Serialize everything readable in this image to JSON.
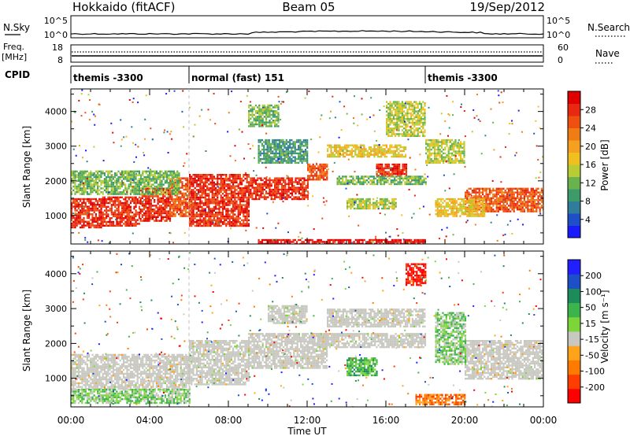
{
  "header": {
    "station": "Hokkaido (fitACF)",
    "beam": "Beam 05",
    "date": "19/Sep/2012"
  },
  "strip": {
    "nsky_label": "N.Sky",
    "nsearch_label": "N.Search",
    "freq_label_1": "Freq.",
    "freq_label_2": "[MHz]",
    "nave_label": "Nave",
    "cpid_label": "CPID",
    "nsky_ticks": [
      "10^5",
      "10^0"
    ],
    "nsearch_ticks": [
      "10^5",
      "10^0"
    ],
    "freq_ticks": [
      "18",
      "8"
    ],
    "nave_ticks": [
      "60",
      "0"
    ]
  },
  "cpid_segments": [
    {
      "label": "themis -3300",
      "start_hour": 0
    },
    {
      "label": "normal (fast) 151",
      "start_hour": 6
    },
    {
      "label": "themis -3300",
      "start_hour": 18
    }
  ],
  "colors": {
    "power_scale": [
      "#1a1aff",
      "#1f4fc8",
      "#2f7d9a",
      "#3d9b6a",
      "#68b34d",
      "#b9cc33",
      "#f0c020",
      "#f5a020",
      "#f07c14",
      "#ee5010",
      "#e82810",
      "#e00000"
    ],
    "velocity_scale": [
      "#ff0000",
      "#ff3d00",
      "#ff7a00",
      "#ffa31a",
      "#c8c8c0",
      "#7cd63a",
      "#3cb44b",
      "#1e8c5a",
      "#1c4fc8",
      "#2020ff"
    ],
    "ground_scatter": "#c8c8c0"
  },
  "chart_data": [
    {
      "type": "heatmap",
      "name": "power",
      "xlabel": "",
      "ylabel": "Slant Range [km]",
      "colorbar_label": "Power [dB]",
      "colorbar_ticks": [
        4,
        8,
        12,
        16,
        20,
        24,
        28
      ],
      "x_ticks": [
        "00:00",
        "04:00",
        "08:00",
        "12:00",
        "16:00",
        "20:00",
        "00:00"
      ],
      "x_range_hours": [
        0,
        24
      ],
      "y_ticks": [
        1000,
        2000,
        3000,
        4000
      ],
      "y_range_km": [
        180,
        4650
      ],
      "bands": [
        {
          "t0": 0.0,
          "t1": 1.5,
          "r0": 650,
          "r1": 1500,
          "level": 10
        },
        {
          "t0": 1.5,
          "t1": 3.5,
          "r0": 700,
          "r1": 1550,
          "level": 10
        },
        {
          "t0": 3.5,
          "t1": 5.0,
          "r0": 850,
          "r1": 1800,
          "level": 10
        },
        {
          "t0": 5.0,
          "t1": 6.0,
          "r0": 1000,
          "r1": 2100,
          "level": 9
        },
        {
          "t0": 6.0,
          "t1": 9.0,
          "r0": 700,
          "r1": 2200,
          "level": 10
        },
        {
          "t0": 9.0,
          "t1": 12.0,
          "r0": 1500,
          "r1": 2100,
          "level": 10
        },
        {
          "t0": 12.0,
          "t1": 13.0,
          "r0": 2050,
          "r1": 2500,
          "level": 9
        },
        {
          "t0": 13.0,
          "t1": 17.0,
          "r0": 2700,
          "r1": 3050,
          "level": 6
        },
        {
          "t0": 15.5,
          "t1": 17.0,
          "r0": 2150,
          "r1": 2500,
          "level": 10
        },
        {
          "t0": 13.5,
          "t1": 18.0,
          "r0": 1900,
          "r1": 2150,
          "level": 4
        },
        {
          "t0": 18.0,
          "t1": 20.0,
          "r0": 2500,
          "r1": 3200,
          "level": 5
        },
        {
          "t0": 20.0,
          "t1": 24.0,
          "r0": 1100,
          "r1": 1800,
          "level": 9
        },
        {
          "t0": 0.0,
          "t1": 5.5,
          "r0": 1600,
          "r1": 2300,
          "level": 4
        },
        {
          "t0": 18.5,
          "t1": 21.0,
          "r0": 1000,
          "r1": 1500,
          "level": 6
        },
        {
          "t0": 14.0,
          "t1": 16.5,
          "r0": 1200,
          "r1": 1500,
          "level": 5
        },
        {
          "t0": 9.5,
          "t1": 12.0,
          "r0": 2500,
          "r1": 3200,
          "level": 3
        },
        {
          "t0": 16.0,
          "t1": 18.0,
          "r0": 3300,
          "r1": 4300,
          "level": 5
        },
        {
          "t0": 9.0,
          "t1": 10.5,
          "r0": 3600,
          "r1": 4200,
          "level": 4
        },
        {
          "t0": 9.5,
          "t1": 18.0,
          "r0": 200,
          "r1": 320,
          "level": 11
        }
      ]
    },
    {
      "type": "heatmap",
      "name": "velocity",
      "xlabel": "Time UT",
      "ylabel": "Slant Range [km]",
      "colorbar_label": "Velocity [m s⁻¹]",
      "colorbar_ticks": [
        -200,
        -100,
        -50,
        -15,
        15,
        50,
        100,
        200
      ],
      "x_ticks": [
        "00:00",
        "04:00",
        "08:00",
        "12:00",
        "16:00",
        "20:00",
        "00:00"
      ],
      "x_range_hours": [
        0,
        24
      ],
      "y_ticks": [
        1000,
        2000,
        3000,
        4000
      ],
      "y_range_km": [
        180,
        4650
      ],
      "bands": [
        {
          "t0": 0.0,
          "t1": 6.0,
          "r0": 700,
          "r1": 1700,
          "level": 4
        },
        {
          "t0": 6.0,
          "t1": 9.0,
          "r0": 800,
          "r1": 2100,
          "level": 4
        },
        {
          "t0": 9.0,
          "t1": 13.0,
          "r0": 1300,
          "r1": 2300,
          "level": 4
        },
        {
          "t0": 13.0,
          "t1": 18.0,
          "r0": 2500,
          "r1": 3000,
          "level": 4
        },
        {
          "t0": 20.0,
          "t1": 24.0,
          "r0": 1000,
          "r1": 2100,
          "level": 4
        },
        {
          "t0": 0.0,
          "t1": 6.0,
          "r0": 300,
          "r1": 700,
          "level": 5
        },
        {
          "t0": 18.5,
          "t1": 20.0,
          "r0": 1400,
          "r1": 2900,
          "level": 5
        },
        {
          "t0": 17.5,
          "t1": 20.0,
          "r0": 250,
          "r1": 550,
          "level": 2
        },
        {
          "t0": 17.0,
          "t1": 18.0,
          "r0": 3700,
          "r1": 4300,
          "level": 0
        },
        {
          "t0": 14.0,
          "t1": 15.5,
          "r0": 1100,
          "r1": 1600,
          "level": 6
        },
        {
          "t0": 10.0,
          "t1": 12.0,
          "r0": 2600,
          "r1": 3100,
          "level": 4
        },
        {
          "t0": 12.5,
          "t1": 18.0,
          "r0": 1900,
          "r1": 2300,
          "level": 4
        }
      ]
    }
  ]
}
